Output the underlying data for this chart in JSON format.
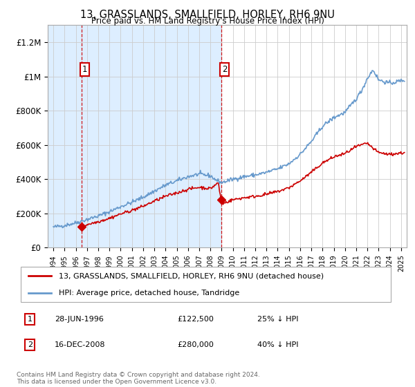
{
  "title": "13, GRASSLANDS, SMALLFIELD, HORLEY, RH6 9NU",
  "subtitle": "Price paid vs. HM Land Registry's House Price Index (HPI)",
  "legend_line1": "13, GRASSLANDS, SMALLFIELD, HORLEY, RH6 9NU (detached house)",
  "legend_line2": "HPI: Average price, detached house, Tandridge",
  "footnote": "Contains HM Land Registry data © Crown copyright and database right 2024.\nThis data is licensed under the Open Government Licence v3.0.",
  "transaction1_date": "28-JUN-1996",
  "transaction1_price": "£122,500",
  "transaction1_hpi": "25% ↓ HPI",
  "transaction2_date": "16-DEC-2008",
  "transaction2_price": "£280,000",
  "transaction2_hpi": "40% ↓ HPI",
  "color_red": "#cc0000",
  "color_blue": "#6699cc",
  "color_shade": "#ddeeff",
  "ylim": [
    0,
    1300000
  ],
  "yticks": [
    0,
    200000,
    400000,
    600000,
    800000,
    1000000,
    1200000
  ],
  "ytick_labels": [
    "£0",
    "£200K",
    "£400K",
    "£600K",
    "£800K",
    "£1M",
    "£1.2M"
  ],
  "xmin": 1993.5,
  "xmax": 2025.5,
  "transaction1_x": 1996.5,
  "transaction1_y": 122500,
  "transaction2_x": 2008.95,
  "transaction2_y": 280000,
  "shade_start": 1993.5,
  "shade_end": 2008.95
}
